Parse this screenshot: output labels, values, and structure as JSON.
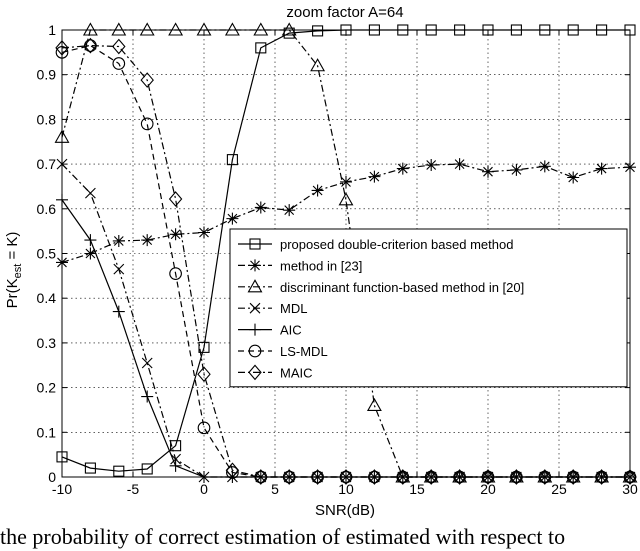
{
  "caption": "the probability of correct estimation of estimated with respect to",
  "chart_data": {
    "type": "line",
    "title": "zoom factor A=64",
    "xlabel": "SNR(dB)",
    "ylabel_main": "Pr(K",
    "ylabel_sub": "est",
    "ylabel_tail": " = K)",
    "xlim": [
      -10,
      30
    ],
    "ylim": [
      0,
      1
    ],
    "xticks": [
      -10,
      -5,
      0,
      5,
      10,
      15,
      20,
      25,
      30
    ],
    "yticks": [
      0,
      0.1,
      0.2,
      0.3,
      0.4,
      0.5,
      0.6,
      0.7,
      0.8,
      0.9,
      1
    ],
    "grid": true,
    "legend_position": "center-right",
    "series": [
      {
        "name": "proposed double-criterion based method",
        "marker": "square",
        "dash": "solid",
        "x": [
          -10,
          -8,
          -6,
          -4,
          -2,
          0,
          2,
          4,
          6,
          8,
          10,
          12,
          14,
          16,
          18,
          20,
          22,
          24,
          26,
          28,
          30
        ],
        "y": [
          0.045,
          0.02,
          0.013,
          0.018,
          0.07,
          0.29,
          0.71,
          0.96,
          0.993,
          0.998,
          1,
          1,
          1,
          1,
          1,
          1,
          1,
          1,
          1,
          1,
          1
        ]
      },
      {
        "name": "method in [23]",
        "marker": "star",
        "dash": "dashdot",
        "x": [
          -10,
          -8,
          -6,
          -4,
          -2,
          0,
          2,
          4,
          6,
          8,
          10,
          12,
          14,
          16,
          18,
          20,
          22,
          24,
          26,
          28,
          30
        ],
        "y": [
          0.48,
          0.5,
          0.528,
          0.53,
          0.543,
          0.547,
          0.578,
          0.603,
          0.597,
          0.641,
          0.66,
          0.672,
          0.69,
          0.698,
          0.7,
          0.683,
          0.687,
          0.695,
          0.67,
          0.69,
          0.693
        ]
      },
      {
        "name": "discriminant function-based method in [20]",
        "marker": "triangle",
        "dash": "dashdot",
        "x": [
          -10,
          -8,
          -6,
          -4,
          -2,
          0,
          2,
          4,
          6,
          8,
          10,
          12,
          14,
          16,
          18,
          20,
          22,
          24,
          26,
          28,
          30
        ],
        "y": [
          0.76,
          1,
          1,
          1,
          1,
          1,
          1,
          1,
          1,
          0.92,
          0.62,
          0.16,
          0,
          0,
          0,
          0,
          0,
          0,
          0,
          0,
          0
        ]
      },
      {
        "name": "MDL",
        "marker": "x",
        "dash": "dashdot",
        "x": [
          -10,
          -8,
          -6,
          -4,
          -2,
          0,
          2,
          4,
          6,
          8,
          10,
          12,
          14,
          16,
          18,
          20,
          22,
          24,
          26,
          28,
          30
        ],
        "y": [
          0.7,
          0.635,
          0.465,
          0.255,
          0.04,
          0,
          0,
          0,
          0,
          0,
          0,
          0,
          0,
          0,
          0,
          0,
          0,
          0,
          0,
          0,
          0
        ]
      },
      {
        "name": "AIC",
        "marker": "plus",
        "dash": "solid",
        "x": [
          -10,
          -8,
          -6,
          -4,
          -2,
          0,
          2,
          4,
          6,
          8,
          10,
          12,
          14,
          16,
          18,
          20,
          22,
          24,
          26,
          28,
          30
        ],
        "y": [
          0.62,
          0.53,
          0.37,
          0.18,
          0.025,
          0,
          0,
          0,
          0,
          0,
          0,
          0,
          0,
          0,
          0,
          0,
          0,
          0,
          0,
          0,
          0
        ]
      },
      {
        "name": "LS-MDL",
        "marker": "circle",
        "dash": "dashed",
        "x": [
          -10,
          -8,
          -6,
          -4,
          -2,
          0,
          2,
          4,
          6,
          8,
          10,
          12,
          14,
          16,
          18,
          20,
          22,
          24,
          26,
          28,
          30
        ],
        "y": [
          0.95,
          0.965,
          0.925,
          0.79,
          0.455,
          0.11,
          0.01,
          0,
          0,
          0,
          0,
          0,
          0,
          0,
          0,
          0,
          0,
          0,
          0,
          0,
          0
        ]
      },
      {
        "name": "MAIC",
        "marker": "diamond",
        "dash": "dashdot",
        "x": [
          -10,
          -8,
          -6,
          -4,
          -2,
          0,
          2,
          4,
          6,
          8,
          10,
          12,
          14,
          16,
          18,
          20,
          22,
          24,
          26,
          28,
          30
        ],
        "y": [
          0.96,
          0.965,
          0.963,
          0.888,
          0.622,
          0.23,
          0.015,
          0,
          0,
          0,
          0,
          0,
          0,
          0,
          0,
          0,
          0,
          0,
          0,
          0,
          0
        ]
      }
    ]
  }
}
